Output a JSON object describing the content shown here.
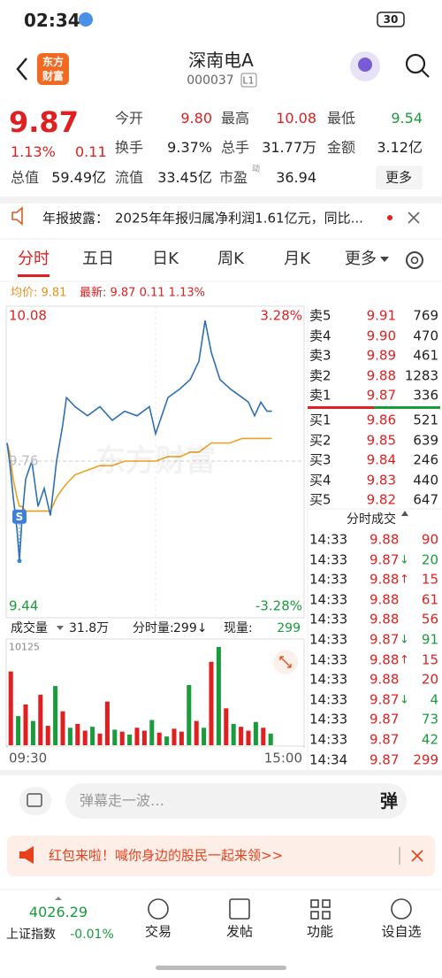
{
  "status": {
    "time": "02:34",
    "battery": "30"
  },
  "header": {
    "logo": [
      "东方",
      "财富"
    ],
    "title": "深南电A",
    "code": "000037",
    "badge": "L1"
  },
  "quote": {
    "price": "9.87",
    "pct": "1.13%",
    "change": "0.11",
    "more": "更多",
    "fields": [
      {
        "label": "今开",
        "value": "9.80",
        "color": "#e02020"
      },
      {
        "label": "最高",
        "value": "10.08",
        "color": "#e02020"
      },
      {
        "label": "最低",
        "value": "9.54",
        "color": "#1a9c3c"
      },
      {
        "label": "换手",
        "value": "9.37%",
        "color": "#222222"
      },
      {
        "label": "总手",
        "value": "31.77万",
        "color": "#222222"
      },
      {
        "label": "金额",
        "value": "3.12亿",
        "color": "#222222"
      },
      {
        "label": "总值",
        "value": "59.49亿",
        "color": "#222222"
      },
      {
        "label": "流值",
        "value": "33.45亿",
        "color": "#222222"
      },
      {
        "label": "市盈",
        "sup": "动",
        "value": "36.94",
        "color": "#222222"
      }
    ]
  },
  "notice": {
    "label": "年报披露：",
    "text": "2025年年报归属净利润1.61亿元，同比..."
  },
  "tabs": [
    "分时",
    "五日",
    "日K",
    "周K",
    "月K",
    "更多"
  ],
  "summary": {
    "avg": "均价: 9.81",
    "latest": "最新: 9.87 0.11 1.13%"
  },
  "chart_data": [
    {
      "type": "line",
      "watermark": "东方财富",
      "annotation": "S",
      "x": [
        0,
        2,
        5,
        8,
        10,
        12,
        15,
        20,
        25,
        30,
        35,
        40,
        45,
        48,
        55,
        65,
        75,
        85,
        95,
        105,
        115,
        120,
        130,
        140,
        148,
        155,
        160,
        165,
        172,
        180,
        190,
        195,
        200,
        205,
        210,
        214
      ],
      "series": [
        {
          "color": "#2f6fb5",
          "values": [
            9.8,
            9.76,
            9.68,
            9.61,
            9.54,
            9.63,
            9.72,
            9.76,
            9.66,
            9.7,
            9.64,
            9.76,
            9.84,
            9.9,
            9.88,
            9.86,
            9.88,
            9.85,
            9.87,
            9.86,
            9.88,
            9.82,
            9.9,
            9.92,
            9.94,
            9.98,
            10.07,
            10.0,
            9.94,
            9.92,
            9.9,
            9.89,
            9.86,
            9.89,
            9.87,
            9.87
          ]
        },
        {
          "color": "#f0a020",
          "values": [
            9.8,
            9.78,
            9.72,
            9.68,
            9.66,
            9.66,
            9.65,
            9.65,
            9.65,
            9.65,
            9.65,
            9.68,
            9.7,
            9.71,
            9.73,
            9.74,
            9.75,
            9.75,
            9.76,
            9.76,
            9.76,
            9.76,
            9.77,
            9.77,
            9.78,
            9.78,
            9.79,
            9.8,
            9.8,
            9.8,
            9.81,
            9.81,
            9.81,
            9.81,
            9.81,
            9.81
          ]
        }
      ],
      "xlim": [
        0,
        240
      ],
      "ylim": [
        9.44,
        10.08
      ],
      "yticks": [
        10.08,
        9.76,
        9.44
      ],
      "y2lim": [
        -3.28,
        3.28
      ],
      "y2ticks": [
        {
          "value": 3.28,
          "label": "3.28%"
        },
        {
          "value": -3.28,
          "label": "-3.28%"
        }
      ]
    },
    {
      "type": "bar",
      "xlim": [
        0,
        240
      ],
      "ylim": [
        0,
        10125
      ],
      "yticks": [
        10125
      ],
      "xticks": [
        {
          "value": 0,
          "label": "09:30"
        },
        {
          "value": 240,
          "label": "15:00"
        }
      ],
      "x": [
        3,
        9,
        15,
        21,
        27,
        33,
        39,
        45,
        51,
        57,
        63,
        69,
        75,
        81,
        87,
        93,
        99,
        105,
        111,
        117,
        123,
        129,
        135,
        141,
        147,
        153,
        159,
        165,
        171,
        177,
        183,
        189,
        195,
        201,
        207,
        213
      ],
      "values": [
        7600,
        3000,
        4200,
        2500,
        5200,
        2000,
        6100,
        3500,
        1800,
        2200,
        1500,
        1900,
        1200,
        4500,
        1600,
        1400,
        1100,
        1800,
        1500,
        2600,
        1300,
        900,
        1700,
        1400,
        6200,
        2500,
        1800,
        8600,
        10125,
        3800,
        2200,
        1900,
        1500,
        2400,
        1800,
        1200
      ],
      "colors": [
        "#e02020",
        "#1a9c3c",
        "#e02020",
        "#1a9c3c",
        "#e02020",
        "#e02020",
        "#1a9c3c",
        "#e02020",
        "#1a9c3c",
        "#e02020",
        "#e02020",
        "#1a9c3c",
        "#e02020",
        "#e02020",
        "#1a9c3c",
        "#e02020",
        "#1a9c3c",
        "#e02020",
        "#e02020",
        "#1a9c3c",
        "#e02020",
        "#1a9c3c",
        "#e02020",
        "#e02020",
        "#1a9c3c",
        "#e02020",
        "#1a9c3c",
        "#e02020",
        "#1a9c3c",
        "#e02020",
        "#1a9c3c",
        "#e02020",
        "#e02020",
        "#1a9c3c",
        "#e02020",
        "#1a9c3c"
      ]
    }
  ],
  "volume_bar": {
    "label": "成交量",
    "total": "31.8万",
    "period_label": "分时量:",
    "period_value": "299↓",
    "now_label": "现量:",
    "now_value": "299"
  },
  "order_book": {
    "asks": [
      {
        "label": "卖5",
        "price": "9.91",
        "vol": "769"
      },
      {
        "label": "卖4",
        "price": "9.90",
        "vol": "470"
      },
      {
        "label": "卖3",
        "price": "9.89",
        "vol": "461"
      },
      {
        "label": "卖2",
        "price": "9.88",
        "vol": "1283"
      },
      {
        "label": "卖1",
        "price": "9.87",
        "vol": "336"
      }
    ],
    "bids": [
      {
        "label": "买1",
        "price": "9.86",
        "vol": "521"
      },
      {
        "label": "买2",
        "price": "9.85",
        "vol": "639"
      },
      {
        "label": "买3",
        "price": "9.84",
        "vol": "246"
      },
      {
        "label": "买4",
        "price": "9.83",
        "vol": "440"
      },
      {
        "label": "买5",
        "price": "9.82",
        "vol": "647"
      }
    ]
  },
  "trades": {
    "title": "分时成交",
    "rows": [
      {
        "time": "14:33",
        "price": "9.88",
        "vol": "90",
        "color": "#e02020"
      },
      {
        "time": "14:33",
        "price": "9.87",
        "arrow": "↓",
        "vol": "20",
        "color": "#1a9c3c"
      },
      {
        "time": "14:33",
        "price": "9.88",
        "arrow": "↑",
        "vol": "15",
        "color": "#e02020"
      },
      {
        "time": "14:33",
        "price": "9.88",
        "vol": "61",
        "color": "#e02020"
      },
      {
        "time": "14:33",
        "price": "9.88",
        "vol": "56",
        "color": "#e02020"
      },
      {
        "time": "14:33",
        "price": "9.87",
        "arrow": "↓",
        "vol": "91",
        "color": "#1a9c3c"
      },
      {
        "time": "14:33",
        "price": "9.88",
        "arrow": "↑",
        "vol": "15",
        "color": "#e02020"
      },
      {
        "time": "14:33",
        "price": "9.88",
        "vol": "20",
        "color": "#e02020"
      },
      {
        "time": "14:33",
        "price": "9.87",
        "arrow": "↓",
        "vol": "4",
        "color": "#1a9c3c"
      },
      {
        "time": "14:33",
        "price": "9.87",
        "vol": "73",
        "color": "#1a9c3c"
      },
      {
        "time": "14:33",
        "price": "9.87",
        "vol": "42",
        "color": "#1a9c3c"
      },
      {
        "time": "14:34",
        "price": "9.87",
        "vol": "299",
        "color": "#e02020"
      }
    ]
  },
  "comment": {
    "placeholder": "弹幕走一波…",
    "button": "弹"
  },
  "banner": {
    "text": "红包来啦！喊你身边的股民一起来领>>"
  },
  "nav": {
    "index_value": "4026.29",
    "index_name": "上证指数",
    "index_change": "-0.01%",
    "items": [
      "交易",
      "发帖",
      "功能",
      "设自选"
    ]
  }
}
